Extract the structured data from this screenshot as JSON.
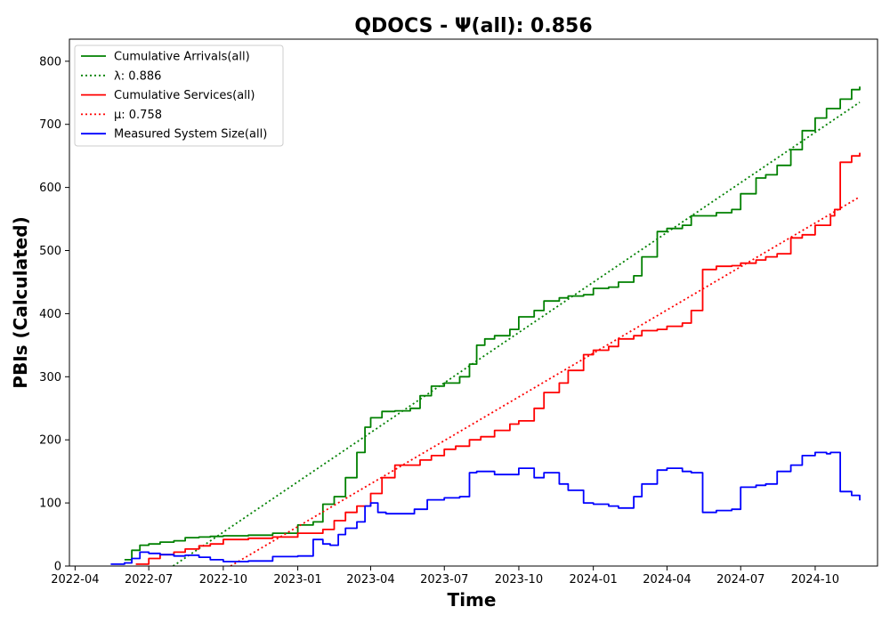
{
  "chart_data": {
    "type": "line",
    "title": "QDOCS -  Ψ(all): 0.856",
    "xlabel": "Time",
    "ylabel": "PBIs (Calculated)",
    "xlim": [
      "2022-03-25",
      "2024-12-17"
    ],
    "ylim": [
      0,
      835
    ],
    "x_ticks": [
      "2022-04",
      "2022-07",
      "2022-10",
      "2023-01",
      "2023-04",
      "2023-07",
      "2023-10",
      "2024-01",
      "2024-04",
      "2024-07",
      "2024-10"
    ],
    "y_ticks": [
      0,
      100,
      200,
      300,
      400,
      500,
      600,
      700,
      800
    ],
    "grid": false,
    "legend_position": "top-left",
    "series": [
      {
        "name": "Cumulative Arrivals(all)",
        "style": "solid",
        "color": "#008000",
        "x": [
          "2022-06-01",
          "2022-06-10",
          "2022-06-20",
          "2022-07-01",
          "2022-07-15",
          "2022-08-01",
          "2022-08-15",
          "2022-09-01",
          "2022-09-15",
          "2022-10-01",
          "2022-11-01",
          "2022-12-01",
          "2023-01-01",
          "2023-01-20",
          "2023-02-01",
          "2023-02-15",
          "2023-03-01",
          "2023-03-15",
          "2023-03-25",
          "2023-04-01",
          "2023-04-15",
          "2023-05-01",
          "2023-05-20",
          "2023-06-01",
          "2023-06-15",
          "2023-07-01",
          "2023-07-20",
          "2023-08-01",
          "2023-08-10",
          "2023-08-20",
          "2023-09-01",
          "2023-09-20",
          "2023-10-01",
          "2023-10-20",
          "2023-11-01",
          "2023-11-20",
          "2023-12-01",
          "2023-12-20",
          "2024-01-01",
          "2024-01-20",
          "2024-02-01",
          "2024-02-20",
          "2024-03-01",
          "2024-03-20",
          "2024-04-01",
          "2024-04-20",
          "2024-05-01",
          "2024-06-01",
          "2024-06-20",
          "2024-07-01",
          "2024-07-20",
          "2024-08-01",
          "2024-08-15",
          "2024-09-01",
          "2024-09-15",
          "2024-10-01",
          "2024-10-15",
          "2024-11-01",
          "2024-11-15",
          "2024-11-25"
        ],
        "y": [
          10,
          25,
          33,
          35,
          38,
          40,
          45,
          46,
          47,
          48,
          49,
          52,
          65,
          70,
          98,
          110,
          140,
          180,
          220,
          235,
          245,
          246,
          250,
          270,
          285,
          290,
          300,
          320,
          350,
          360,
          365,
          375,
          395,
          405,
          420,
          425,
          428,
          430,
          440,
          442,
          450,
          460,
          490,
          530,
          535,
          540,
          555,
          560,
          565,
          590,
          615,
          620,
          635,
          660,
          690,
          710,
          725,
          740,
          755,
          760
        ]
      },
      {
        "name": "λ: 0.886",
        "style": "dotted",
        "color": "#008000",
        "x": [
          "2022-07-31",
          "2024-11-25"
        ],
        "y": [
          0,
          735
        ]
      },
      {
        "name": "Cumulative Services(all)",
        "style": "solid",
        "color": "#ff0000",
        "x": [
          "2022-06-15",
          "2022-07-01",
          "2022-07-15",
          "2022-08-01",
          "2022-08-15",
          "2022-09-01",
          "2022-09-15",
          "2022-10-01",
          "2022-11-01",
          "2022-12-01",
          "2023-01-01",
          "2023-02-01",
          "2023-02-15",
          "2023-03-01",
          "2023-03-15",
          "2023-04-01",
          "2023-04-15",
          "2023-05-01",
          "2023-06-01",
          "2023-06-15",
          "2023-07-01",
          "2023-07-15",
          "2023-08-01",
          "2023-08-15",
          "2023-09-01",
          "2023-09-20",
          "2023-10-01",
          "2023-10-20",
          "2023-11-01",
          "2023-11-20",
          "2023-12-01",
          "2023-12-20",
          "2024-01-01",
          "2024-01-20",
          "2024-02-01",
          "2024-02-20",
          "2024-03-01",
          "2024-03-20",
          "2024-04-01",
          "2024-04-20",
          "2024-05-01",
          "2024-05-15",
          "2024-06-01",
          "2024-06-20",
          "2024-07-01",
          "2024-07-20",
          "2024-08-01",
          "2024-08-15",
          "2024-09-01",
          "2024-09-15",
          "2024-10-01",
          "2024-10-20",
          "2024-10-25",
          "2024-11-01",
          "2024-11-15",
          "2024-11-25"
        ],
        "y": [
          3,
          12,
          18,
          22,
          27,
          32,
          35,
          42,
          44,
          46,
          52,
          58,
          72,
          85,
          95,
          115,
          140,
          160,
          168,
          175,
          185,
          190,
          200,
          205,
          215,
          225,
          230,
          250,
          275,
          290,
          310,
          335,
          342,
          348,
          360,
          365,
          373,
          375,
          380,
          385,
          405,
          470,
          475,
          476,
          480,
          485,
          490,
          495,
          520,
          525,
          540,
          555,
          565,
          640,
          650,
          655
        ]
      },
      {
        "name": "μ: 0.758",
        "style": "dotted",
        "color": "#ff0000",
        "x": [
          "2022-10-10",
          "2024-11-25"
        ],
        "y": [
          0,
          585
        ]
      },
      {
        "name": "Measured System Size(all)",
        "style": "solid",
        "color": "#0000ff",
        "x": [
          "2022-05-15",
          "2022-06-01",
          "2022-06-10",
          "2022-06-20",
          "2022-07-01",
          "2022-07-15",
          "2022-08-01",
          "2022-08-15",
          "2022-09-01",
          "2022-09-15",
          "2022-10-01",
          "2022-11-01",
          "2022-12-01",
          "2023-01-01",
          "2023-01-20",
          "2023-02-01",
          "2023-02-10",
          "2023-02-20",
          "2023-03-01",
          "2023-03-15",
          "2023-03-25",
          "2023-04-01",
          "2023-04-10",
          "2023-04-20",
          "2023-05-10",
          "2023-05-25",
          "2023-06-10",
          "2023-07-01",
          "2023-07-20",
          "2023-08-01",
          "2023-08-10",
          "2023-09-01",
          "2023-10-01",
          "2023-10-20",
          "2023-11-01",
          "2023-11-20",
          "2023-12-01",
          "2023-12-20",
          "2024-01-01",
          "2024-01-20",
          "2024-02-01",
          "2024-02-20",
          "2024-03-01",
          "2024-03-20",
          "2024-04-01",
          "2024-04-20",
          "2024-05-01",
          "2024-05-15",
          "2024-06-01",
          "2024-06-20",
          "2024-07-01",
          "2024-07-20",
          "2024-08-01",
          "2024-08-15",
          "2024-09-01",
          "2024-09-15",
          "2024-10-01",
          "2024-10-15",
          "2024-10-20",
          "2024-11-01",
          "2024-11-15",
          "2024-11-25"
        ],
        "y": [
          3,
          5,
          12,
          22,
          20,
          18,
          16,
          17,
          14,
          10,
          7,
          8,
          15,
          16,
          42,
          35,
          33,
          50,
          60,
          70,
          95,
          100,
          85,
          83,
          83,
          90,
          105,
          108,
          110,
          148,
          150,
          145,
          155,
          140,
          148,
          130,
          120,
          100,
          98,
          95,
          92,
          110,
          130,
          152,
          155,
          150,
          148,
          85,
          88,
          90,
          125,
          128,
          130,
          150,
          160,
          175,
          180,
          178,
          180,
          118,
          112,
          104
        ]
      }
    ]
  }
}
